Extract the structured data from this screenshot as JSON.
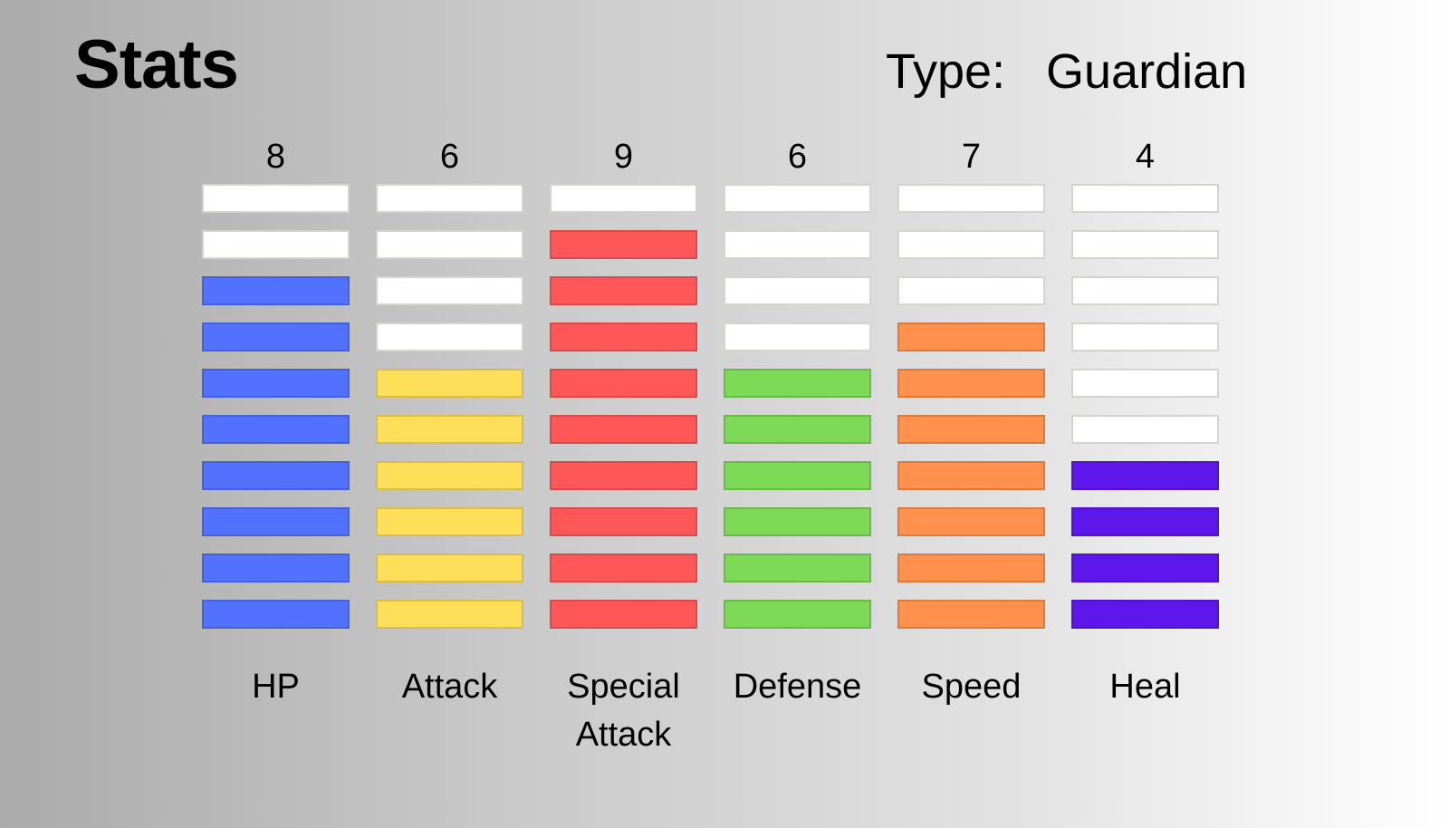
{
  "header": {
    "title": "Stats",
    "type_label": "Type:",
    "type_value": "Guardian"
  },
  "chart_data": {
    "type": "bar",
    "title": "Stats",
    "max_segments": 10,
    "categories": [
      [
        "HP"
      ],
      [
        "Attack"
      ],
      [
        "Special",
        "Attack"
      ],
      [
        "Defense"
      ],
      [
        "Speed"
      ],
      [
        "Heal"
      ]
    ],
    "values": [
      8,
      6,
      9,
      6,
      7,
      4
    ],
    "colors": [
      "#5271ff",
      "#ffde59",
      "#ff5757",
      "#7ed957",
      "#ff914d",
      "#5e17eb"
    ],
    "empty_color": "#ffffff",
    "grid": false,
    "legend": "none"
  }
}
